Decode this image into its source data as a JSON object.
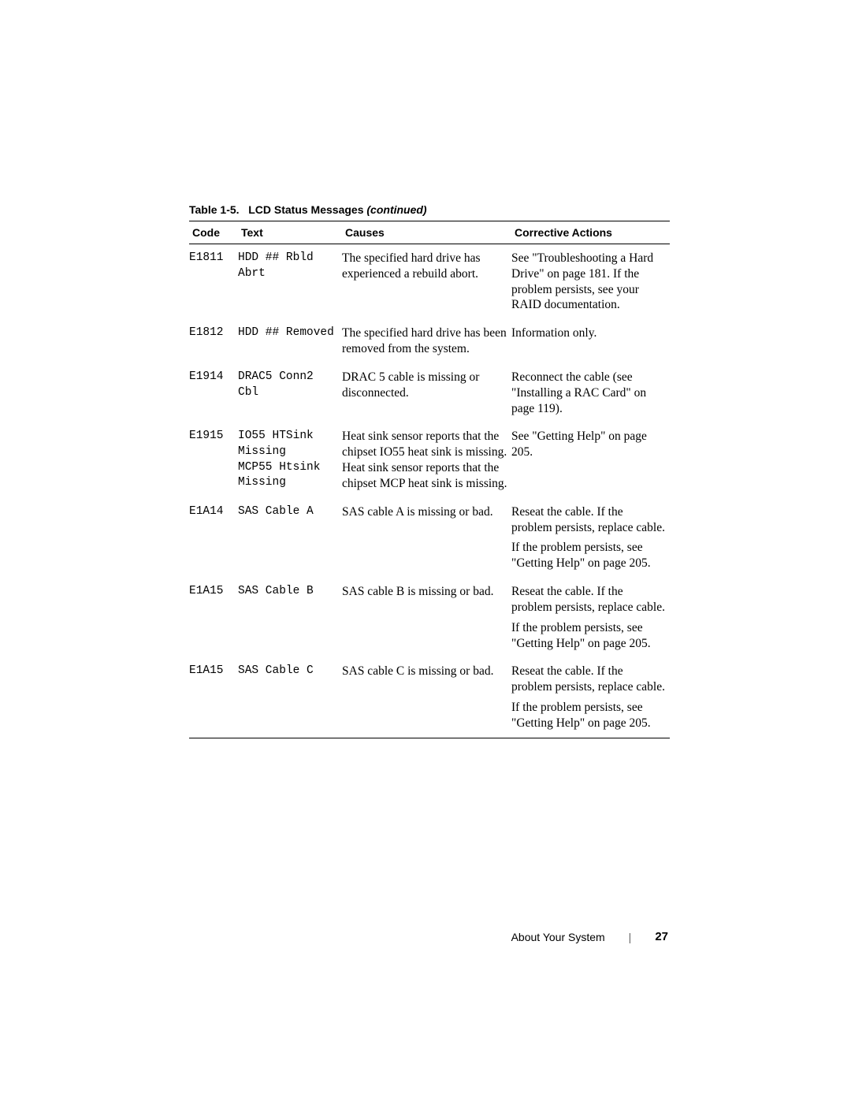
{
  "caption": {
    "label": "Table 1-5.",
    "title": "LCD Status Messages",
    "continued": "(continued)"
  },
  "headers": {
    "code": "Code",
    "text": "Text",
    "causes": "Causes",
    "actions": "Corrective Actions"
  },
  "rows": [
    {
      "code": "E1811",
      "text": "HDD ## Rbld Abrt",
      "causes": "The specified hard drive has experienced a rebuild abort.",
      "actions": [
        "See \"Troubleshooting a Hard Drive\" on page 181. If the problem persists, see your RAID documentation."
      ]
    },
    {
      "code": "E1812",
      "text": "HDD ## Removed",
      "causes": "The specified hard drive has been removed from the system.",
      "actions": [
        "Information only."
      ]
    },
    {
      "code": "E1914",
      "text": "DRAC5 Conn2 Cbl",
      "causes": "DRAC 5 cable is missing or disconnected.",
      "actions": [
        "Reconnect the cable (see \"Installing a RAC Card\" on page 119)."
      ]
    },
    {
      "code": "E1915",
      "text": "IO55 HTSink Missing\nMCP55 Htsink Missing",
      "causes": "Heat sink sensor reports that the chipset IO55 heat sink is missing.\nHeat sink sensor reports that the chipset MCP heat sink is missing.",
      "actions": [
        "See \"Getting Help\" on page 205."
      ]
    },
    {
      "code": "E1A14",
      "text": "SAS Cable A",
      "causes": "SAS cable A is missing or bad.",
      "actions": [
        "Reseat the cable. If the problem persists, replace cable.",
        "If the problem persists, see \"Getting Help\" on page 205."
      ]
    },
    {
      "code": "E1A15",
      "text": "SAS Cable B",
      "causes": "SAS cable B is missing or bad.",
      "actions": [
        "Reseat the cable. If the problem persists, replace cable.",
        "If the problem persists, see \"Getting Help\" on page 205."
      ]
    },
    {
      "code": "E1A15",
      "text": "SAS Cable C",
      "causes": "SAS cable C is missing or bad.",
      "actions": [
        "Reseat the cable. If the problem persists, replace cable.",
        "If the problem persists, see \"Getting Help\" on page 205."
      ]
    }
  ],
  "footer": {
    "section": "About Your System",
    "page": "27"
  }
}
